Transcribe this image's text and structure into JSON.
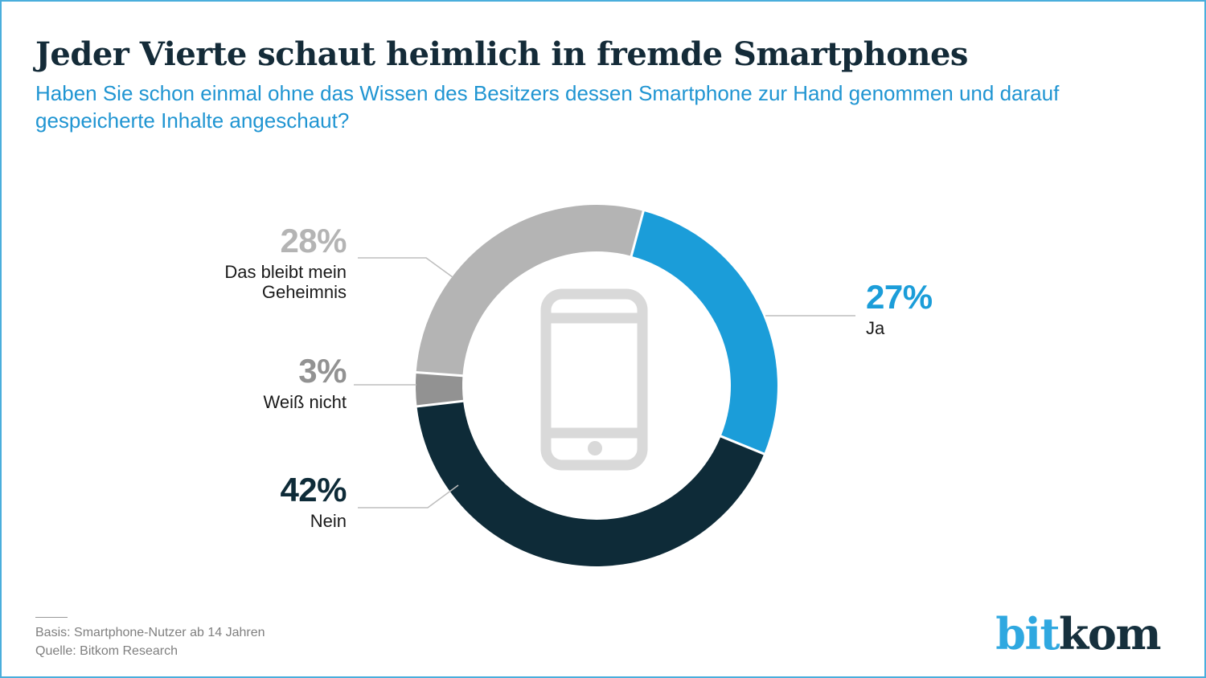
{
  "header": {
    "title": "Jeder Vierte schaut heimlich in fremde Smartphones",
    "subtitle_line1": "Haben Sie schon einmal ohne das Wissen des Besitzers dessen Smartphone zur Hand genommen und darauf",
    "subtitle_line2": "gespeicherte Inhalte angeschaut?"
  },
  "chart_data": {
    "type": "pie",
    "variant": "donut",
    "title": "Jeder Vierte schaut heimlich in fremde Smartphones",
    "question": "Haben Sie schon einmal ohne das Wissen des Besitzers dessen Smartphone zur Hand genommen und darauf gespeicherte Inhalte angeschaut?",
    "start_angle_deg": 15,
    "direction": "clockwise",
    "center_icon": "smartphone-icon",
    "legend_position": "callouts-around-donut",
    "segments": [
      {
        "label": "Ja",
        "value": 27,
        "pct_label": "27%",
        "color": "#1b9dd9"
      },
      {
        "label": "Nein",
        "value": 42,
        "pct_label": "42%",
        "color": "#0e2b38"
      },
      {
        "label": "Weiß nicht",
        "value": 3,
        "pct_label": "3%",
        "color": "#929292"
      },
      {
        "label": "Das bleibt mein Geheimnis",
        "value": 28,
        "pct_label": "28%",
        "color": "#b4b4b4"
      }
    ]
  },
  "palette": {
    "accent_blue": "#1b9dd9",
    "dark_navy": "#0e2b38",
    "title_color": "#142b38",
    "subtitle_blue": "#2095d2",
    "leader_line_gray": "#bdbdbd",
    "phone_icon_gray": "#d9d9d9",
    "footer_gray": "#7f7f7f",
    "border_blue": "#4aaedc"
  },
  "footer": {
    "basis": "Basis: Smartphone-Nutzer ab 14 Jahren",
    "source": "Quelle: Bitkom Research"
  },
  "logo": {
    "bit": "bit",
    "kom": "kom"
  }
}
